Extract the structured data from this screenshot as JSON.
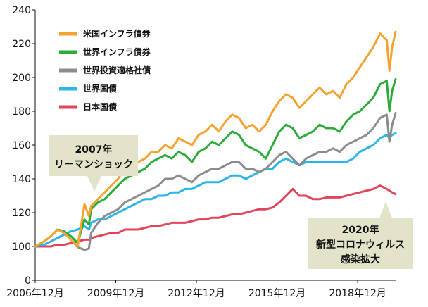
{
  "chart_data": {
    "type": "line",
    "title": "",
    "xlabel": "",
    "ylabel": "",
    "ylim": [
      0,
      240
    ],
    "yticks": [
      0,
      100,
      120,
      140,
      160,
      180,
      200,
      220,
      240
    ],
    "xlim": [
      2006.917,
      2020.33
    ],
    "xticks": [
      {
        "x": 2006.917,
        "label": "2006年12月"
      },
      {
        "x": 2009.917,
        "label": "2009年12月"
      },
      {
        "x": 2012.917,
        "label": "2012年12月"
      },
      {
        "x": 2015.917,
        "label": "2015年12月"
      },
      {
        "x": 2018.917,
        "label": "2018年12月"
      }
    ],
    "grid": false,
    "legend": "top-left",
    "series": [
      {
        "name": "米国インフラ債券",
        "color": "#f5a22e",
        "x": [
          2006.917,
          2007.25,
          2007.5,
          2007.75,
          2008.0,
          2008.25,
          2008.5,
          2008.75,
          2008.917,
          2009.0,
          2009.25,
          2009.5,
          2009.75,
          2010.0,
          2010.25,
          2010.5,
          2010.75,
          2011.0,
          2011.25,
          2011.5,
          2011.75,
          2012.0,
          2012.25,
          2012.5,
          2012.75,
          2013.0,
          2013.25,
          2013.5,
          2013.75,
          2014.0,
          2014.25,
          2014.5,
          2014.75,
          2015.0,
          2015.25,
          2015.5,
          2015.75,
          2016.0,
          2016.25,
          2016.5,
          2016.75,
          2017.0,
          2017.25,
          2017.5,
          2017.75,
          2018.0,
          2018.25,
          2018.5,
          2018.75,
          2019.0,
          2019.25,
          2019.5,
          2019.75,
          2020.0,
          2020.1,
          2020.2,
          2020.33
        ],
        "values": [
          100,
          103,
          106,
          110,
          108,
          104,
          100,
          125,
          118,
          124,
          128,
          132,
          136,
          140,
          146,
          148,
          150,
          152,
          156,
          156,
          160,
          158,
          164,
          162,
          160,
          166,
          168,
          172,
          168,
          174,
          178,
          176,
          170,
          172,
          168,
          172,
          180,
          186,
          190,
          188,
          182,
          186,
          190,
          194,
          190,
          192,
          188,
          196,
          200,
          206,
          212,
          218,
          226,
          222,
          204,
          218,
          227
        ]
      },
      {
        "name": "世界インフラ債券",
        "color": "#2bab3a",
        "x": [
          2006.917,
          2007.25,
          2007.5,
          2007.75,
          2008.0,
          2008.25,
          2008.5,
          2008.75,
          2008.917,
          2009.0,
          2009.25,
          2009.5,
          2009.75,
          2010.0,
          2010.25,
          2010.5,
          2010.75,
          2011.0,
          2011.25,
          2011.5,
          2011.75,
          2012.0,
          2012.25,
          2012.5,
          2012.75,
          2013.0,
          2013.25,
          2013.5,
          2013.75,
          2014.0,
          2014.25,
          2014.5,
          2014.75,
          2015.0,
          2015.25,
          2015.5,
          2015.75,
          2016.0,
          2016.25,
          2016.5,
          2016.75,
          2017.0,
          2017.25,
          2017.5,
          2017.75,
          2018.0,
          2018.25,
          2018.5,
          2018.75,
          2019.0,
          2019.25,
          2019.5,
          2019.75,
          2020.0,
          2020.1,
          2020.2,
          2020.33
        ],
        "values": [
          100,
          103,
          106,
          110,
          109,
          106,
          102,
          116,
          113,
          122,
          126,
          128,
          132,
          136,
          140,
          142,
          144,
          146,
          150,
          152,
          154,
          152,
          156,
          154,
          150,
          156,
          158,
          162,
          160,
          164,
          168,
          166,
          160,
          158,
          156,
          152,
          160,
          168,
          172,
          170,
          164,
          166,
          168,
          172,
          170,
          170,
          168,
          174,
          178,
          180,
          184,
          188,
          196,
          198,
          180,
          192,
          199
        ]
      },
      {
        "name": "世界投資適格社債",
        "color": "#8c8c8c",
        "x": [
          2006.917,
          2007.25,
          2007.5,
          2007.75,
          2008.0,
          2008.25,
          2008.5,
          2008.75,
          2008.917,
          2009.0,
          2009.25,
          2009.5,
          2009.75,
          2010.0,
          2010.25,
          2010.5,
          2010.75,
          2011.0,
          2011.25,
          2011.5,
          2011.75,
          2012.0,
          2012.25,
          2012.5,
          2012.75,
          2013.0,
          2013.25,
          2013.5,
          2013.75,
          2014.0,
          2014.25,
          2014.5,
          2014.75,
          2015.0,
          2015.25,
          2015.5,
          2015.75,
          2016.0,
          2016.25,
          2016.5,
          2016.75,
          2017.0,
          2017.25,
          2017.5,
          2017.75,
          2018.0,
          2018.25,
          2018.5,
          2018.75,
          2019.0,
          2019.25,
          2019.5,
          2019.75,
          2020.0,
          2020.1,
          2020.2,
          2020.33
        ],
        "values": [
          100,
          103,
          106,
          110,
          108,
          104,
          98,
          90,
          94,
          108,
          114,
          118,
          120,
          122,
          126,
          128,
          130,
          132,
          134,
          136,
          140,
          140,
          142,
          140,
          138,
          142,
          144,
          146,
          146,
          148,
          150,
          150,
          146,
          146,
          144,
          146,
          150,
          154,
          156,
          152,
          148,
          152,
          154,
          156,
          156,
          158,
          156,
          160,
          162,
          164,
          166,
          170,
          176,
          178,
          162,
          172,
          179
        ]
      },
      {
        "name": "世界国債",
        "color": "#2bb5e8",
        "x": [
          2006.917,
          2007.25,
          2007.5,
          2007.75,
          2008.0,
          2008.25,
          2008.5,
          2008.75,
          2008.917,
          2009.0,
          2009.25,
          2009.5,
          2009.75,
          2010.0,
          2010.25,
          2010.5,
          2010.75,
          2011.0,
          2011.25,
          2011.5,
          2011.75,
          2012.0,
          2012.25,
          2012.5,
          2012.75,
          2013.0,
          2013.25,
          2013.5,
          2013.75,
          2014.0,
          2014.25,
          2014.5,
          2014.75,
          2015.0,
          2015.25,
          2015.5,
          2015.75,
          2016.0,
          2016.25,
          2016.5,
          2016.75,
          2017.0,
          2017.25,
          2017.5,
          2017.75,
          2018.0,
          2018.25,
          2018.5,
          2018.75,
          2019.0,
          2019.25,
          2019.5,
          2019.75,
          2020.0,
          2020.1,
          2020.2,
          2020.33
        ],
        "values": [
          100,
          101,
          103,
          105,
          107,
          109,
          110,
          112,
          110,
          114,
          116,
          116,
          118,
          120,
          122,
          124,
          126,
          128,
          128,
          130,
          130,
          132,
          132,
          134,
          134,
          136,
          138,
          138,
          138,
          140,
          142,
          142,
          140,
          142,
          144,
          146,
          146,
          150,
          152,
          150,
          148,
          150,
          150,
          150,
          150,
          150,
          150,
          150,
          152,
          156,
          158,
          160,
          164,
          166,
          164,
          166,
          167
        ]
      },
      {
        "name": "日本国債",
        "color": "#e2445c",
        "x": [
          2006.917,
          2007.25,
          2007.5,
          2007.75,
          2008.0,
          2008.25,
          2008.5,
          2008.75,
          2008.917,
          2009.0,
          2009.25,
          2009.5,
          2009.75,
          2010.0,
          2010.25,
          2010.5,
          2010.75,
          2011.0,
          2011.25,
          2011.5,
          2011.75,
          2012.0,
          2012.25,
          2012.5,
          2012.75,
          2013.0,
          2013.25,
          2013.5,
          2013.75,
          2014.0,
          2014.25,
          2014.5,
          2014.75,
          2015.0,
          2015.25,
          2015.5,
          2015.75,
          2016.0,
          2016.25,
          2016.5,
          2016.75,
          2017.0,
          2017.25,
          2017.5,
          2017.75,
          2018.0,
          2018.25,
          2018.5,
          2018.75,
          2019.0,
          2019.25,
          2019.5,
          2019.75,
          2020.0,
          2020.1,
          2020.2,
          2020.33
        ],
        "values": [
          100,
          100,
          100,
          101,
          101,
          102,
          103,
          104,
          104,
          105,
          106,
          107,
          108,
          108,
          110,
          110,
          110,
          111,
          112,
          112,
          113,
          114,
          114,
          114,
          115,
          116,
          116,
          117,
          117,
          118,
          119,
          119,
          120,
          121,
          122,
          122,
          123,
          126,
          130,
          134,
          130,
          130,
          128,
          128,
          129,
          129,
          129,
          130,
          131,
          132,
          133,
          134,
          136,
          134,
          133,
          132,
          131
        ]
      }
    ],
    "annotations": [
      {
        "lines": [
          "2007年",
          "リーマンショック"
        ]
      },
      {
        "lines": [
          "2020年",
          "新型コロナウィルス",
          "感染拡大"
        ]
      }
    ]
  }
}
